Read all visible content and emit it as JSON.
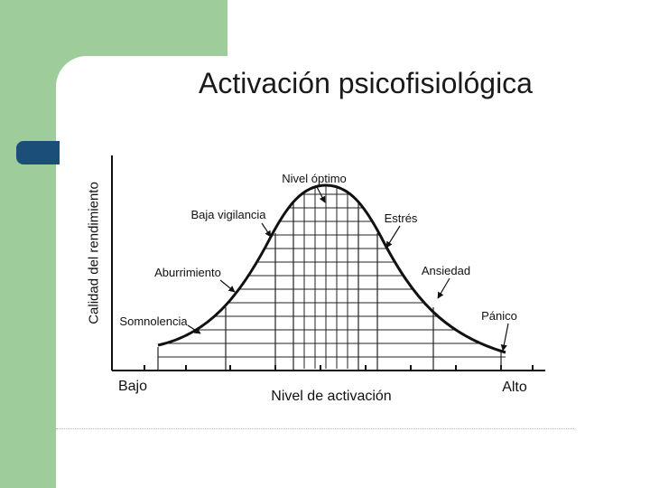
{
  "slide": {
    "title": "Activación psicofisiológica",
    "y_axis_label": "Calidad del rendimiento",
    "x_axis_label": "Nivel de activación",
    "x_low_label": "Bajo",
    "x_high_label": "Alto"
  },
  "curve_labels": {
    "optimal": "Nivel óptimo",
    "low_vigilance": "Baja vigilancia",
    "stress": "Estrés",
    "boredom": "Aburrimiento",
    "anxiety": "Ansiedad",
    "drowsiness": "Somnolencia",
    "panic": "Pánico"
  },
  "colors": {
    "decor_green": "#9fcc9b",
    "decor_blue": "#1b4f7a",
    "ink": "#111111"
  }
}
